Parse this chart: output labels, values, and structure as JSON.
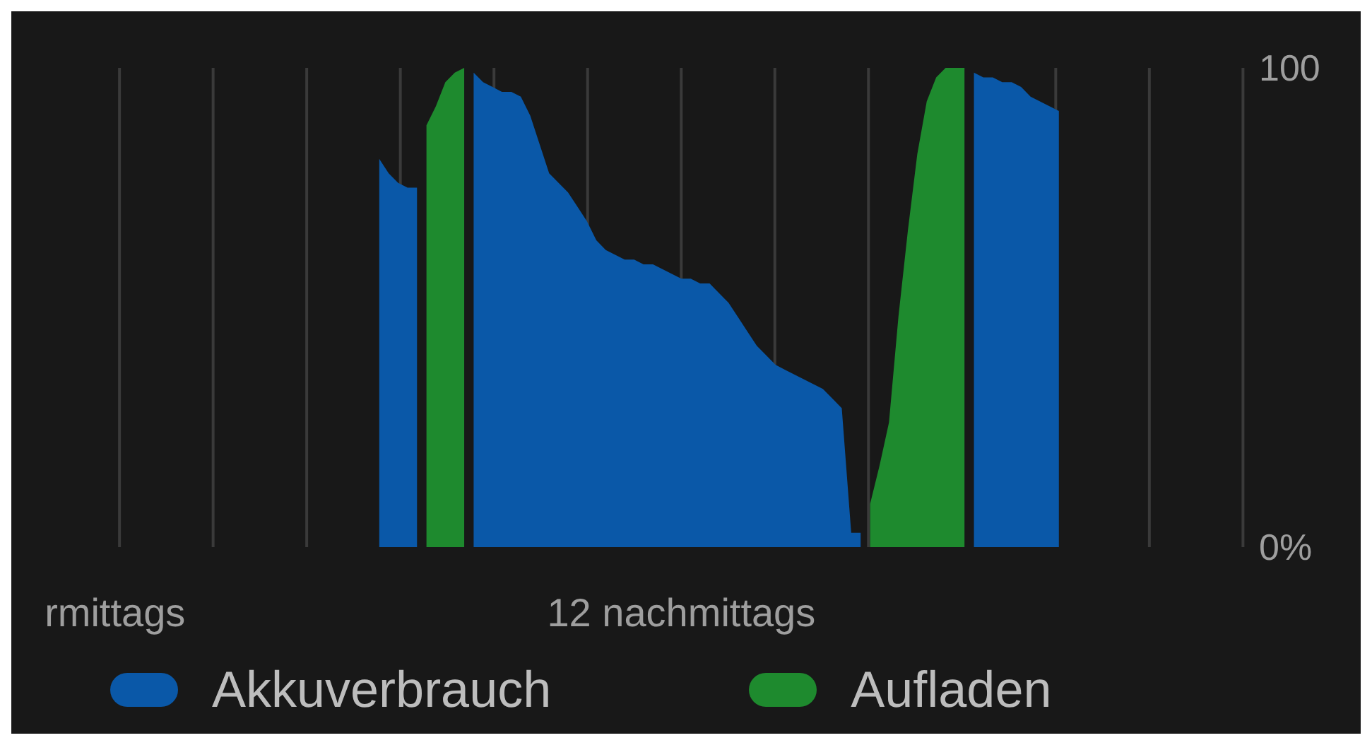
{
  "chart_data": {
    "type": "area",
    "categories": [
      null,
      null,
      "rmittags",
      null,
      null,
      null,
      null,
      null,
      null,
      null,
      null,
      null,
      null,
      null,
      null,
      null,
      null,
      null,
      null,
      null,
      null,
      null,
      null,
      null,
      null,
      null,
      null,
      null,
      null,
      null,
      null,
      null,
      null,
      null,
      null,
      null,
      null,
      null,
      null,
      null,
      null,
      null,
      null,
      null,
      null,
      null,
      null,
      null,
      null,
      null,
      null,
      null,
      null,
      null,
      null,
      null,
      null,
      null,
      null,
      null,
      null,
      null,
      "12 nachmittags",
      null,
      null,
      null,
      null,
      null,
      null,
      null,
      null,
      null,
      null,
      null,
      null,
      null,
      null,
      null,
      null,
      null,
      null,
      null,
      null,
      null,
      null,
      null,
      null,
      null,
      null,
      null,
      null,
      null,
      null,
      null,
      null,
      null,
      null,
      null,
      null,
      null,
      null,
      null,
      null,
      null,
      null,
      null,
      null,
      null,
      null,
      null,
      null,
      null,
      null,
      null,
      null,
      null,
      null,
      null,
      null,
      null,
      null,
      null,
      null
    ],
    "ylim": [
      0,
      100
    ],
    "yticks": [
      {
        "value": 0,
        "label": "0%"
      },
      100
    ],
    "grid": "x",
    "legend": "bottom",
    "series": [
      {
        "name": "Akkuverbrauch",
        "color": "#0a58a8",
        "values": [
          null,
          null,
          null,
          null,
          null,
          null,
          null,
          null,
          null,
          null,
          null,
          null,
          null,
          null,
          null,
          null,
          null,
          null,
          null,
          null,
          null,
          null,
          null,
          null,
          null,
          null,
          null,
          null,
          null,
          null,
          81,
          78,
          76,
          75,
          75,
          null,
          null,
          null,
          null,
          null,
          99,
          97,
          96,
          95,
          95,
          94,
          90,
          84,
          78,
          76,
          74,
          71,
          68,
          64,
          62,
          61,
          60,
          60,
          59,
          59,
          58,
          57,
          56,
          56,
          55,
          55,
          53,
          51,
          48,
          45,
          42,
          40,
          38,
          37,
          36,
          35,
          34,
          33,
          31,
          29,
          3,
          3,
          null,
          null,
          null,
          null,
          null,
          null,
          null,
          null,
          null,
          null,
          null,
          99,
          98,
          98,
          97,
          97,
          96,
          94,
          93,
          92,
          91,
          null,
          null,
          null,
          null,
          null,
          null,
          null,
          null,
          null,
          null,
          null,
          null,
          null,
          null,
          null,
          null,
          null,
          null,
          null,
          null
        ]
      },
      {
        "name": "Aufladen",
        "color": "#1e8a2e",
        "values": [
          null,
          null,
          null,
          null,
          null,
          null,
          null,
          null,
          null,
          null,
          null,
          null,
          null,
          null,
          null,
          null,
          null,
          null,
          null,
          null,
          null,
          null,
          null,
          null,
          null,
          null,
          null,
          null,
          null,
          null,
          null,
          null,
          null,
          null,
          null,
          88,
          92,
          97,
          99,
          100,
          null,
          null,
          null,
          null,
          null,
          null,
          null,
          null,
          null,
          null,
          null,
          null,
          null,
          null,
          null,
          null,
          null,
          null,
          null,
          null,
          null,
          null,
          null,
          null,
          null,
          null,
          null,
          null,
          null,
          null,
          null,
          null,
          null,
          null,
          null,
          null,
          null,
          null,
          null,
          null,
          null,
          null,
          9,
          17,
          26,
          48,
          66,
          82,
          93,
          98,
          100,
          100,
          100,
          null,
          null,
          null,
          null,
          null,
          null,
          null,
          null,
          null,
          null,
          null,
          null,
          null,
          null,
          null,
          null,
          null,
          null,
          null,
          null,
          null,
          null,
          null,
          null,
          null,
          null,
          null,
          null,
          null,
          null
        ]
      }
    ]
  }
}
